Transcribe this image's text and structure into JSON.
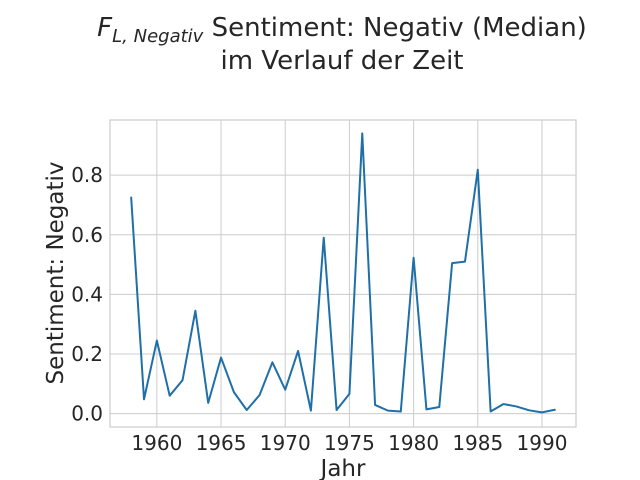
{
  "chart_data": {
    "type": "line",
    "title": {
      "symbol": "F",
      "symbol_subscript": "L, Negativ",
      "line1_rest": " Sentiment: Negativ (Median)",
      "line2": "im Verlauf der Zeit"
    },
    "xlabel": "Jahr",
    "ylabel": "Sentiment: Negativ",
    "xlim": [
      1956.35,
      1992.65
    ],
    "ylim": [
      -0.045,
      0.985
    ],
    "xticks": [
      1960,
      1965,
      1970,
      1975,
      1980,
      1985,
      1990
    ],
    "yticks": [
      0.0,
      0.2,
      0.4,
      0.6,
      0.8
    ],
    "ytick_labels": [
      "0.0",
      "0.2",
      "0.4",
      "0.6",
      "0.8"
    ],
    "grid": true,
    "series": [
      {
        "color": "#1f6fa8",
        "x": [
          1958,
          1959,
          1960,
          1961,
          1962,
          1963,
          1964,
          1965,
          1966,
          1967,
          1968,
          1969,
          1970,
          1971,
          1972,
          1973,
          1974,
          1975,
          1976,
          1977,
          1978,
          1979,
          1980,
          1981,
          1982,
          1983,
          1984,
          1985,
          1986,
          1987,
          1988,
          1989,
          1990,
          1991
        ],
        "y": [
          0.725,
          0.048,
          0.245,
          0.06,
          0.112,
          0.345,
          0.036,
          0.188,
          0.072,
          0.012,
          0.062,
          0.172,
          0.08,
          0.21,
          0.01,
          0.59,
          0.012,
          0.066,
          0.94,
          0.029,
          0.01,
          0.007,
          0.523,
          0.014,
          0.022,
          0.505,
          0.51,
          0.818,
          0.007,
          0.032,
          0.024,
          0.011,
          0.004,
          0.013
        ]
      }
    ]
  }
}
